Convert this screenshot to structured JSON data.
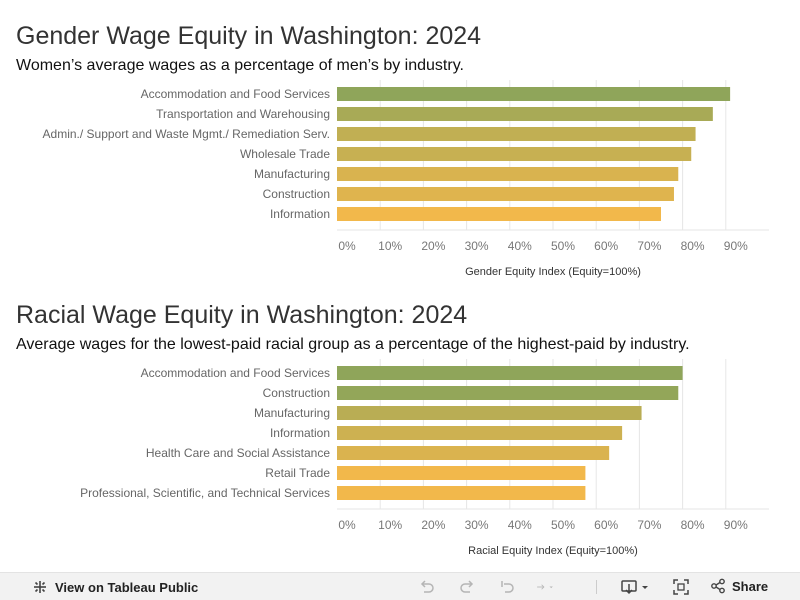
{
  "colors": {
    "high": "#8fa55a",
    "low": "#f2b84b",
    "grid": "#e6e6e6"
  },
  "chart_data": [
    {
      "type": "bar",
      "orientation": "horizontal",
      "title": "Gender Wage Equity in Washington: 2024",
      "subtitle": "Women’s average wages as a percentage of men’s by industry.",
      "xlabel": "Gender Equity Index (Equity=100%)",
      "categories": [
        "Accommodation and Food Services",
        "Transportation and Warehousing",
        "Admin./ Support and Waste Mgmt./ Remediation Serv.",
        "Wholesale Trade",
        "Manufacturing",
        "Construction",
        "Information"
      ],
      "values": [
        91,
        87,
        83,
        82,
        79,
        78,
        75
      ],
      "xlim": [
        0,
        100
      ],
      "ticks": [
        "0%",
        "10%",
        "20%",
        "30%",
        "40%",
        "50%",
        "60%",
        "70%",
        "80%",
        "90%"
      ],
      "color_range": [
        75,
        91
      ],
      "grid": true
    },
    {
      "type": "bar",
      "orientation": "horizontal",
      "title": "Racial Wage Equity in Washington: 2024",
      "subtitle": "Average wages for the lowest-paid racial group as a percentage of the highest-paid by industry.",
      "xlabel": "Racial Equity Index (Equity=100%)",
      "categories": [
        "Accommodation and Food Services",
        "Construction",
        "Manufacturing",
        "Information",
        "Health Care and Social Assistance",
        "Retail Trade",
        "Professional, Scientific, and Technical Services"
      ],
      "values": [
        80,
        79,
        70.5,
        66,
        63,
        57.5,
        57.5
      ],
      "xlim": [
        0,
        100
      ],
      "ticks": [
        "0%",
        "10%",
        "20%",
        "30%",
        "40%",
        "50%",
        "60%",
        "70%",
        "80%",
        "90%"
      ],
      "color_range": [
        57.5,
        80
      ],
      "grid": true
    }
  ],
  "footer": {
    "view_label": "View on Tableau Public",
    "share_label": "Share",
    "icons": [
      "tableau-logo-icon",
      "undo-icon",
      "redo-icon",
      "revert-icon",
      "refresh-icon",
      "download-icon",
      "fullscreen-icon",
      "share-icon"
    ]
  }
}
